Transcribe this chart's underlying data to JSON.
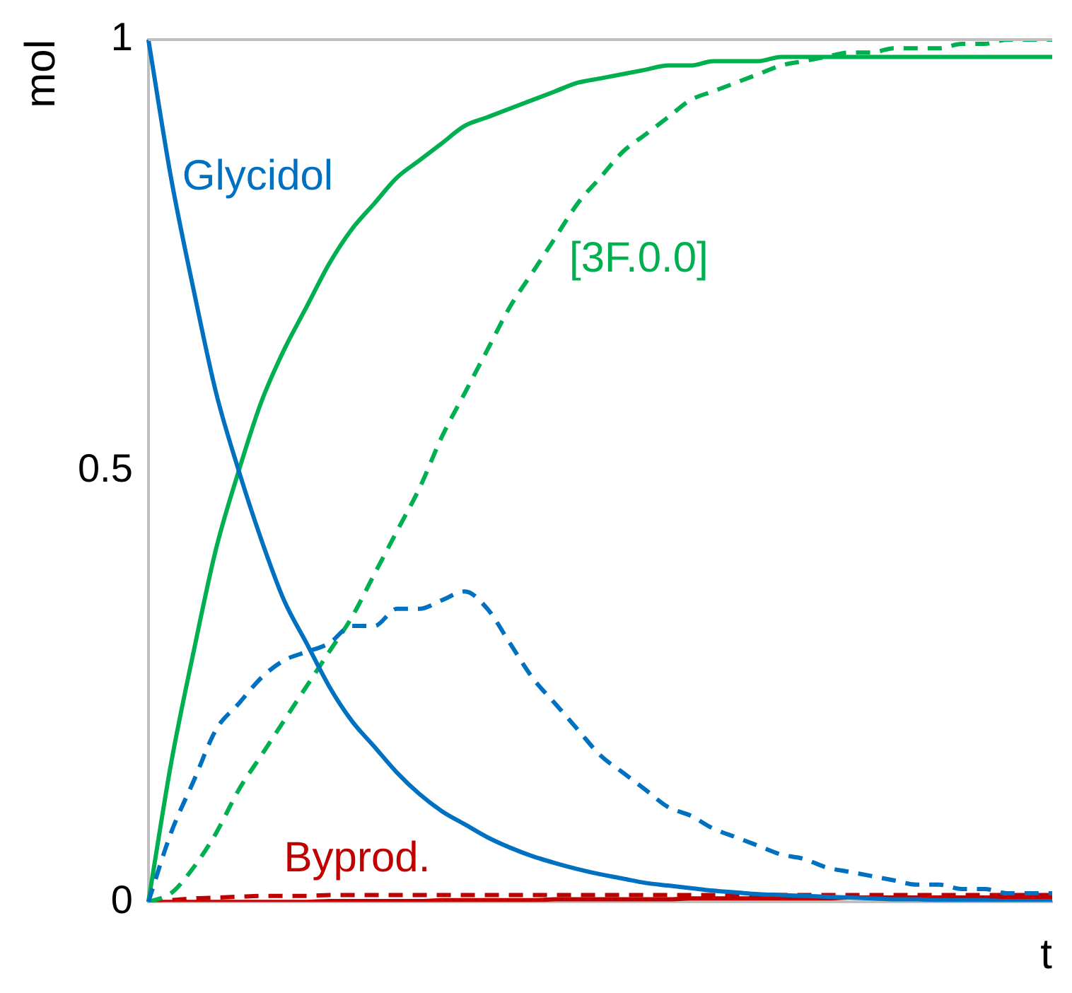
{
  "chart_data": {
    "type": "line",
    "xlabel": "t",
    "ylabel": "mol",
    "categories": [
      null,
      null,
      null,
      null,
      null,
      null,
      null,
      null,
      null,
      null,
      null,
      null,
      null,
      null,
      null,
      null,
      null,
      null,
      null,
      null,
      null,
      null,
      null,
      null,
      null,
      null,
      null,
      null,
      null,
      null,
      null,
      null,
      null,
      null,
      null,
      null,
      null,
      null,
      null,
      null,
      null
    ],
    "ylim": [
      0,
      1
    ],
    "yticks": [
      0,
      0.5,
      1
    ],
    "grid": false,
    "legend": false,
    "marker": "none",
    "series": [
      {
        "name": "Glycidol",
        "color": "#0070c0",
        "line_style": "solid",
        "values": [
          1,
          0.84,
          0.71,
          0.59,
          0.5,
          0.42,
          0.35,
          0.3,
          0.25,
          0.21,
          0.18,
          0.15,
          0.125,
          0.105,
          0.09,
          0.075,
          0.063,
          0.053,
          0.045,
          0.038,
          0.032,
          0.027,
          0.022,
          0.019,
          0.016,
          0.013,
          0.011,
          0.009,
          0.008,
          0.007,
          0.006,
          0.005,
          0.004,
          0.003,
          0.003,
          0.002,
          0.002,
          0.002,
          0.001,
          0.001,
          0.001
        ]
      },
      {
        "color": "#0070c0",
        "line_style": "dashed",
        "values": [
          0,
          0.08,
          0.14,
          0.2,
          0.23,
          0.26,
          0.28,
          0.29,
          0.3,
          0.32,
          0.32,
          0.34,
          0.34,
          0.35,
          0.36,
          0.34,
          0.3,
          0.26,
          0.23,
          0.2,
          0.17,
          0.15,
          0.13,
          0.11,
          0.1,
          0.085,
          0.075,
          0.065,
          0.055,
          0.05,
          0.04,
          0.035,
          0.03,
          0.025,
          0.02,
          0.02,
          0.015,
          0.015,
          0.01,
          0.01,
          0.01
        ]
      },
      {
        "color": "#00b050",
        "line_style": "solid",
        "values": [
          0,
          0.16,
          0.29,
          0.41,
          0.5,
          0.58,
          0.64,
          0.69,
          0.74,
          0.78,
          0.81,
          0.84,
          0.86,
          0.88,
          0.9,
          0.91,
          0.92,
          0.93,
          0.94,
          0.95,
          0.955,
          0.96,
          0.965,
          0.97,
          0.97,
          0.975,
          0.975,
          0.975,
          0.98,
          0.98,
          0.98,
          0.98,
          0.98,
          0.98,
          0.98,
          0.98,
          0.98,
          0.98,
          0.98,
          0.98,
          0.98
        ]
      },
      {
        "name": "[3F.0.0]",
        "color": "#00b050",
        "line_style": "dashed",
        "values": [
          0,
          0.01,
          0.04,
          0.08,
          0.13,
          0.17,
          0.21,
          0.25,
          0.29,
          0.33,
          0.38,
          0.43,
          0.48,
          0.54,
          0.59,
          0.64,
          0.69,
          0.73,
          0.77,
          0.81,
          0.84,
          0.87,
          0.89,
          0.91,
          0.93,
          0.94,
          0.95,
          0.96,
          0.97,
          0.975,
          0.98,
          0.985,
          0.985,
          0.99,
          0.99,
          0.99,
          0.995,
          0.995,
          1,
          1,
          1
        ]
      },
      {
        "name": "Byprod.",
        "color": "#c00000",
        "line_style": "solid",
        "values": [
          0,
          0,
          0,
          0,
          0,
          0,
          0,
          0,
          0.001,
          0.001,
          0.001,
          0.001,
          0.001,
          0.002,
          0.002,
          0.002,
          0.002,
          0.002,
          0.003,
          0.003,
          0.003,
          0.003,
          0.003,
          0.003,
          0.004,
          0.004,
          0.004,
          0.004,
          0.004,
          0.004,
          0.004,
          0.005,
          0.005,
          0.005,
          0.005,
          0.005,
          0.005,
          0.005,
          0.005,
          0.005,
          0.005
        ]
      },
      {
        "color": "#c00000",
        "line_style": "dashed",
        "values": [
          0,
          0.002,
          0.004,
          0.005,
          0.006,
          0.007,
          0.007,
          0.007,
          0.008,
          0.008,
          0.008,
          0.008,
          0.008,
          0.008,
          0.008,
          0.008,
          0.008,
          0.008,
          0.008,
          0.008,
          0.008,
          0.008,
          0.008,
          0.008,
          0.008,
          0.008,
          0.008,
          0.008,
          0.008,
          0.008,
          0.008,
          0.008,
          0.008,
          0.008,
          0.008,
          0.008,
          0.008,
          0.008,
          0.008,
          0.008,
          0.008
        ]
      }
    ]
  }
}
